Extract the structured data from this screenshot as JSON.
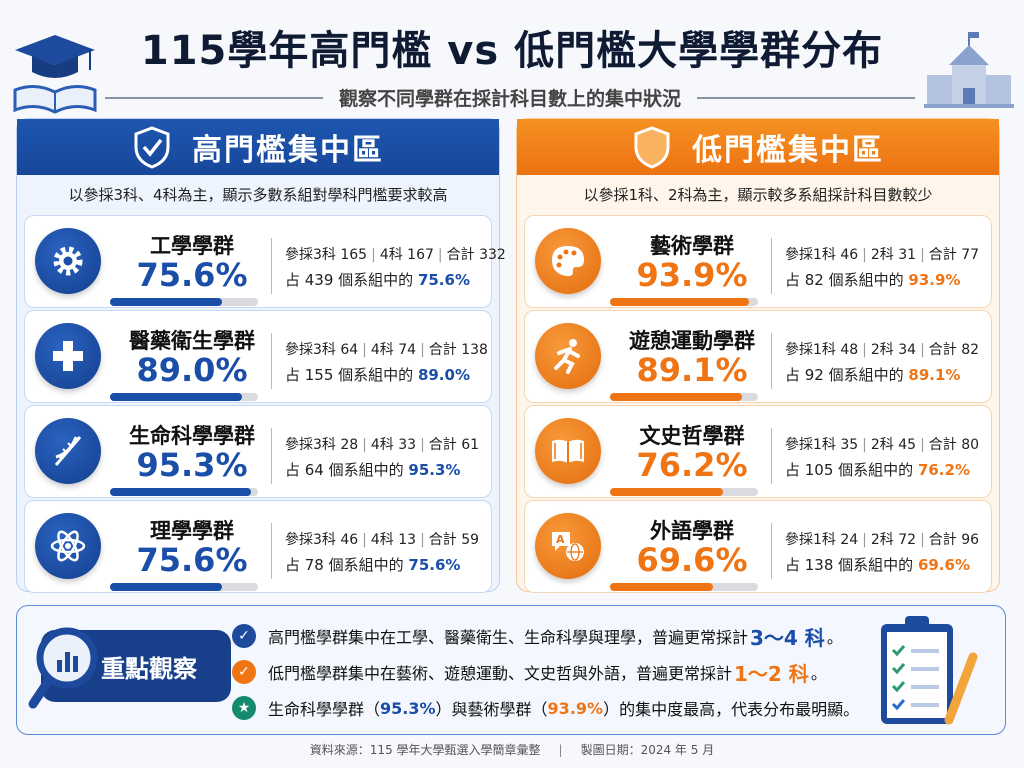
{
  "header": {
    "title": "115學年高門檻 vs 低門檻大學學群分布",
    "subtitle": "觀察不同學群在採計科目數上的集中狀況"
  },
  "colors": {
    "blue": "#1a4ea8",
    "orange": "#ef7414",
    "green": "#148a6e"
  },
  "high": {
    "title": "高門檻集中區",
    "icon": "shield-check-icon",
    "desc": "以參採3科、4科為主，顯示多數系組對學科門檻要求較高",
    "groups": [
      {
        "name": "工學學群",
        "pct": "75.6%",
        "value": 75.6,
        "icon": "gear-icon",
        "a_label": "參採3科",
        "a": "165",
        "b_label": "4科",
        "b": "167",
        "t_label": "合計",
        "t": "332",
        "of_prefix": "占",
        "of": "439",
        "of_suffix": "個系組中的"
      },
      {
        "name": "醫藥衛生學群",
        "pct": "89.0%",
        "value": 89.0,
        "icon": "medical-cross-icon",
        "a_label": "參採3科",
        "a": "64",
        "b_label": "4科",
        "b": "74",
        "t_label": "合計",
        "t": "138",
        "of_prefix": "占",
        "of": "155",
        "of_suffix": "個系組中的"
      },
      {
        "name": "生命科學學群",
        "pct": "95.3%",
        "value": 95.3,
        "icon": "dna-icon",
        "a_label": "參採3科",
        "a": "28",
        "b_label": "4科",
        "b": "33",
        "t_label": "合計",
        "t": "61",
        "of_prefix": "占",
        "of": "64",
        "of_suffix": "個系組中的"
      },
      {
        "name": "理學學群",
        "pct": "75.6%",
        "value": 75.6,
        "icon": "atom-icon",
        "a_label": "參採3科",
        "a": "46",
        "b_label": "4科",
        "b": "13",
        "t_label": "合計",
        "t": "59",
        "of_prefix": "占",
        "of": "78",
        "of_suffix": "個系組中的"
      }
    ]
  },
  "low": {
    "title": "低門檻集中區",
    "icon": "shield-icon",
    "desc": "以參採1科、2科為主，顯示較多系組採計科目數較少",
    "groups": [
      {
        "name": "藝術學群",
        "pct": "93.9%",
        "value": 93.9,
        "icon": "palette-icon",
        "a_label": "參採1科",
        "a": "46",
        "b_label": "2科",
        "b": "31",
        "t_label": "合計",
        "t": "77",
        "of_prefix": "占",
        "of": "82",
        "of_suffix": "個系組中的"
      },
      {
        "name": "遊憩運動學群",
        "pct": "89.1%",
        "value": 89.1,
        "icon": "running-icon",
        "a_label": "參採1科",
        "a": "48",
        "b_label": "2科",
        "b": "34",
        "t_label": "合計",
        "t": "82",
        "of_prefix": "占",
        "of": "92",
        "of_suffix": "個系組中的"
      },
      {
        "name": "文史哲學群",
        "pct": "76.2%",
        "value": 76.2,
        "icon": "book-icon",
        "a_label": "參採1科",
        "a": "35",
        "b_label": "2科",
        "b": "45",
        "t_label": "合計",
        "t": "80",
        "of_prefix": "占",
        "of": "105",
        "of_suffix": "個系組中的"
      },
      {
        "name": "外語學群",
        "pct": "69.6%",
        "value": 69.6,
        "icon": "language-icon",
        "a_label": "參採1科",
        "a": "24",
        "b_label": "2科",
        "b": "72",
        "t_label": "合計",
        "t": "96",
        "of_prefix": "占",
        "of": "138",
        "of_suffix": "個系組中的"
      }
    ]
  },
  "summary": {
    "badge": "重點觀察",
    "p1": {
      "text": "高門檻學群集中在工學、醫藥衛生、生命科學與理學，普遍更常採計",
      "hl": "3～4 科",
      "end": "。"
    },
    "p2": {
      "text": "低門檻學群集中在藝術、遊憩運動、文史哲與外語，普遍更常採計",
      "hl": "1～2 科",
      "end": "。"
    },
    "p3": {
      "a": "生命科學學群（",
      "v1": "95.3%",
      "b": "）與藝術學群（",
      "v2": "93.9%",
      "c": "）的集中度最高，代表分布最明顯。"
    }
  },
  "footer": {
    "source": "資料來源：115 學年大學甄選入學簡章彙整",
    "date": "製圖日期：2024 年 5 月"
  }
}
